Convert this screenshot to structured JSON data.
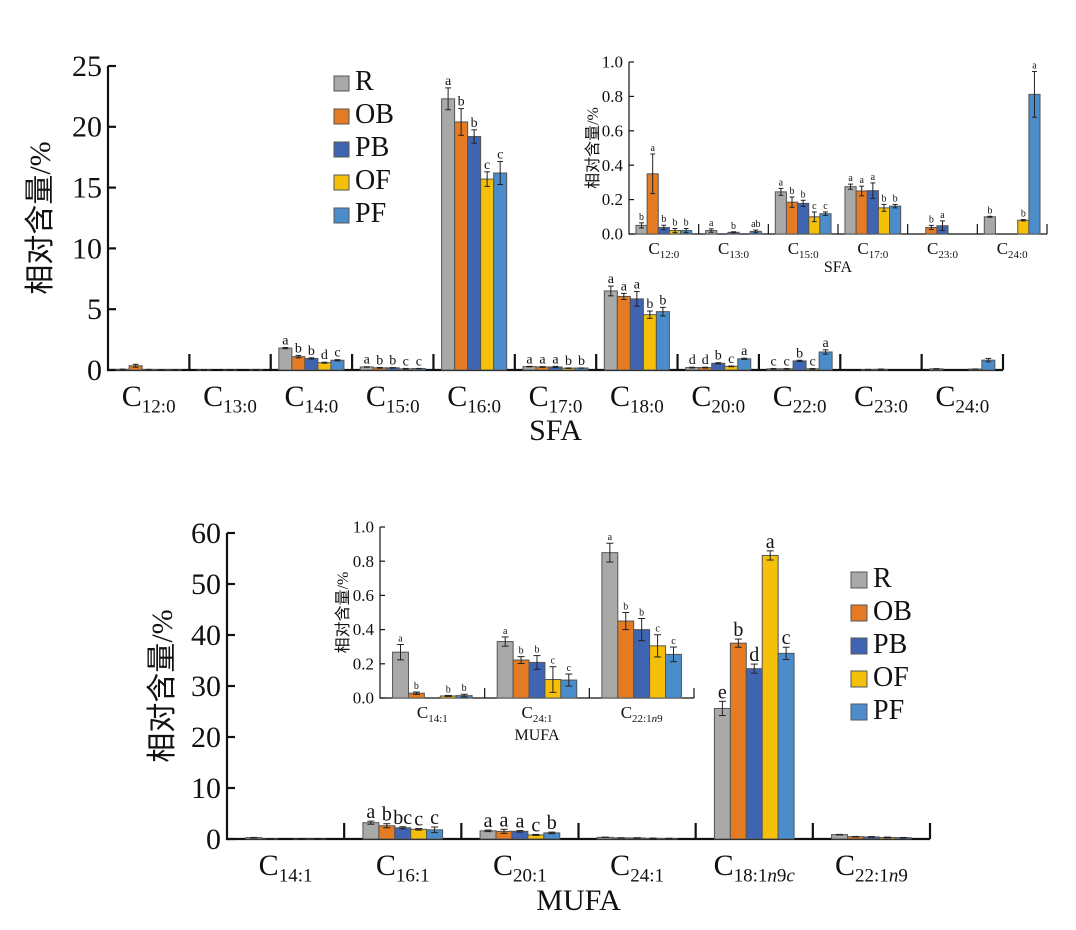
{
  "series_names": [
    "R",
    "OB",
    "PB",
    "OF",
    "PF"
  ],
  "series_colors": [
    "#a9a9a7",
    "#e57b22",
    "#3f65b2",
    "#f4c00a",
    "#4b8dcb"
  ],
  "chart_data": [
    {
      "id": "sfa-main",
      "type": "bar",
      "title": "",
      "xlabel": "SFA",
      "ylabel": "相对含量/%",
      "ylim": [
        0,
        25
      ],
      "yticks": [
        0,
        5,
        10,
        15,
        20,
        25
      ],
      "legend": "top-center",
      "categories": [
        {
          "base": "C",
          "sub": "12:0"
        },
        {
          "base": "C",
          "sub": "13:0"
        },
        {
          "base": "C",
          "sub": "14:0"
        },
        {
          "base": "C",
          "sub": "15:0"
        },
        {
          "base": "C",
          "sub": "16:0"
        },
        {
          "base": "C",
          "sub": "17:0"
        },
        {
          "base": "C",
          "sub": "18:0"
        },
        {
          "base": "C",
          "sub": "20:0"
        },
        {
          "base": "C",
          "sub": "22:0"
        },
        {
          "base": "C",
          "sub": "23:0"
        },
        {
          "base": "C",
          "sub": "24:0"
        }
      ],
      "series": [
        {
          "name": "R",
          "values": [
            0.05,
            0.02,
            1.8,
            0.25,
            22.3,
            0.28,
            6.5,
            0.2,
            0.1,
            0.0,
            0.1
          ],
          "errors": [
            0.02,
            0.01,
            0.05,
            0.02,
            0.9,
            0.02,
            0.4,
            0.03,
            0.02,
            0,
            0.01
          ],
          "letters": [
            "",
            "",
            "a",
            "a",
            "a",
            "a",
            "a",
            "d",
            "c",
            "",
            ""
          ]
        },
        {
          "name": "OB",
          "values": [
            0.35,
            0.0,
            1.1,
            0.18,
            20.4,
            0.25,
            6.05,
            0.2,
            0.1,
            0.04,
            0.0
          ],
          "errors": [
            0.12,
            0,
            0.1,
            0.03,
            1.1,
            0.03,
            0.25,
            0.03,
            0.02,
            0.01,
            0
          ],
          "letters": [
            "",
            "",
            "b",
            "b",
            "b",
            "a",
            "a",
            "d",
            "c",
            "",
            ""
          ]
        },
        {
          "name": "PB",
          "values": [
            0.04,
            0.01,
            0.95,
            0.18,
            19.2,
            0.25,
            5.85,
            0.55,
            0.75,
            0.05,
            0.0
          ],
          "errors": [
            0.01,
            0.005,
            0.05,
            0.02,
            0.55,
            0.05,
            0.6,
            0.05,
            0.05,
            0.03,
            0
          ],
          "letters": [
            "",
            "",
            "b",
            "b",
            "b",
            "a",
            "a",
            "b",
            "b",
            "",
            ""
          ]
        },
        {
          "name": "OF",
          "values": [
            0.02,
            0.0,
            0.6,
            0.1,
            15.7,
            0.15,
            4.55,
            0.3,
            0.1,
            0.0,
            0.08
          ],
          "errors": [
            0.01,
            0,
            0.04,
            0.03,
            0.6,
            0.02,
            0.3,
            0.03,
            0.02,
            0,
            0.005
          ],
          "letters": [
            "",
            "",
            "d",
            "c",
            "c",
            "b",
            "b",
            "c",
            "c",
            "",
            ""
          ]
        },
        {
          "name": "PF",
          "values": [
            0.02,
            0.015,
            0.8,
            0.12,
            16.2,
            0.16,
            4.8,
            0.92,
            1.48,
            0.0,
            0.81
          ],
          "errors": [
            0.015,
            0.01,
            0.05,
            0.01,
            0.95,
            0.01,
            0.35,
            0.05,
            0.18,
            0,
            0.14
          ],
          "letters": [
            "",
            "",
            "c",
            "c",
            "c",
            "b",
            "b",
            "a",
            "a",
            "",
            ""
          ]
        }
      ]
    },
    {
      "id": "sfa-inset",
      "type": "bar",
      "title": "",
      "xlabel": "SFA",
      "ylabel": "相对含量/%",
      "ylim": [
        0,
        1.0
      ],
      "yticks": [
        0.0,
        0.2,
        0.4,
        0.6,
        0.8,
        1.0
      ],
      "categories": [
        {
          "base": "C",
          "sub": "12:0"
        },
        {
          "base": "C",
          "sub": "13:0"
        },
        {
          "base": "C",
          "sub": "15:0"
        },
        {
          "base": "C",
          "sub": "17:0"
        },
        {
          "base": "C",
          "sub": "23:0"
        },
        {
          "base": "C",
          "sub": "24:0"
        }
      ],
      "series": [
        {
          "name": "R",
          "values": [
            0.05,
            0.02,
            0.245,
            0.275,
            null,
            0.1
          ],
          "errors": [
            0.015,
            0.01,
            0.02,
            0.015,
            0,
            0.003
          ],
          "letters": [
            "b",
            "a",
            "a",
            "a",
            "",
            "b"
          ]
        },
        {
          "name": "OB",
          "values": [
            0.35,
            null,
            0.185,
            0.25,
            0.038,
            null
          ],
          "errors": [
            0.115,
            0,
            0.03,
            0.028,
            0.012,
            0
          ],
          "letters": [
            "a",
            "",
            "b",
            "a",
            "b",
            ""
          ]
        },
        {
          "name": "PB",
          "values": [
            0.038,
            0.01,
            0.178,
            0.252,
            0.048,
            null
          ],
          "errors": [
            0.013,
            0.003,
            0.018,
            0.045,
            0.028,
            0
          ],
          "letters": [
            "b",
            "b",
            "b",
            "a",
            "a",
            ""
          ]
        },
        {
          "name": "OF",
          "values": [
            0.02,
            null,
            0.1,
            0.152,
            null,
            0.08
          ],
          "errors": [
            0.012,
            0,
            0.028,
            0.02,
            0,
            0.004
          ],
          "letters": [
            "b",
            "",
            "c",
            "b",
            "",
            "b"
          ]
        },
        {
          "name": "PF",
          "values": [
            0.02,
            0.015,
            0.118,
            0.162,
            null,
            0.812
          ],
          "errors": [
            0.012,
            0.008,
            0.01,
            0.01,
            0,
            0.133
          ],
          "letters": [
            "b",
            "ab",
            "c",
            "b",
            "",
            "a"
          ]
        }
      ]
    },
    {
      "id": "mufa-main",
      "type": "bar",
      "title": "",
      "xlabel": "MUFA",
      "ylabel": "相对含量/%",
      "ylim": [
        0,
        60
      ],
      "yticks": [
        0,
        10,
        20,
        30,
        40,
        50,
        60
      ],
      "legend": "right",
      "categories": [
        {
          "base": "C",
          "sub": "14:1"
        },
        {
          "base": "C",
          "sub": "16:1"
        },
        {
          "base": "C",
          "sub": "20:1"
        },
        {
          "base": "C",
          "sub": "24:1"
        },
        {
          "base": "C",
          "sub": "18:1n9c"
        },
        {
          "base": "C",
          "sub": "22:1n9"
        }
      ],
      "series": [
        {
          "name": "R",
          "values": [
            0.27,
            3.2,
            1.6,
            0.33,
            25.6,
            0.85
          ],
          "errors": [
            0.04,
            0.3,
            0.15,
            0.03,
            1.4,
            0.05
          ],
          "letters": [
            "",
            "a",
            "a",
            "",
            "e",
            ""
          ]
        },
        {
          "name": "OB",
          "values": [
            0.03,
            2.6,
            1.5,
            0.22,
            38.4,
            0.45
          ],
          "errors": [
            0.005,
            0.4,
            0.4,
            0.02,
            0.8,
            0.05
          ],
          "letters": [
            "",
            "b",
            "a",
            "",
            "b",
            ""
          ]
        },
        {
          "name": "PB",
          "values": [
            0.0,
            2.2,
            1.5,
            0.21,
            33.4,
            0.4
          ],
          "errors": [
            0,
            0.2,
            0.15,
            0.04,
            0.9,
            0.07
          ],
          "letters": [
            "",
            "bc",
            "a",
            "",
            "d",
            ""
          ]
        },
        {
          "name": "OF",
          "values": [
            0.01,
            1.9,
            0.8,
            0.11,
            55.6,
            0.3
          ],
          "errors": [
            0.003,
            0.15,
            0.1,
            0.07,
            0.9,
            0.07
          ],
          "letters": [
            "",
            "c",
            "c",
            "",
            "a",
            ""
          ]
        },
        {
          "name": "PF",
          "values": [
            0.01,
            1.8,
            1.2,
            0.1,
            36.4,
            0.26
          ],
          "errors": [
            0.005,
            0.55,
            0.15,
            0.04,
            1.2,
            0.04
          ],
          "letters": [
            "",
            "c",
            "b",
            "",
            "c",
            ""
          ]
        }
      ]
    },
    {
      "id": "mufa-inset",
      "type": "bar",
      "title": "",
      "xlabel": "MUFA",
      "ylabel": "相对含量/%",
      "ylim": [
        0,
        1.0
      ],
      "yticks": [
        0.0,
        0.2,
        0.4,
        0.6,
        0.8,
        1.0
      ],
      "categories": [
        {
          "base": "C",
          "sub": "14:1"
        },
        {
          "base": "C",
          "sub": "24:1"
        },
        {
          "base": "C",
          "sub": "22:1n9"
        }
      ],
      "series": [
        {
          "name": "R",
          "values": [
            0.268,
            0.33,
            0.85
          ],
          "errors": [
            0.045,
            0.027,
            0.055
          ],
          "letters": [
            "a",
            "a",
            "a"
          ]
        },
        {
          "name": "OB",
          "values": [
            0.028,
            0.222,
            0.45
          ],
          "errors": [
            0.007,
            0.02,
            0.05
          ],
          "letters": [
            "b",
            "b",
            "b"
          ]
        },
        {
          "name": "PB",
          "values": [
            null,
            0.208,
            0.4
          ],
          "errors": [
            0,
            0.04,
            0.065
          ],
          "letters": [
            "",
            "b",
            "b"
          ]
        },
        {
          "name": "OF",
          "values": [
            0.012,
            0.108,
            0.305
          ],
          "errors": [
            0.003,
            0.075,
            0.065
          ],
          "letters": [
            "b",
            "c",
            "c"
          ]
        },
        {
          "name": "PF",
          "values": [
            0.014,
            0.105,
            0.255
          ],
          "errors": [
            0.008,
            0.035,
            0.043
          ],
          "letters": [
            "b",
            "c",
            "c"
          ]
        }
      ]
    }
  ]
}
